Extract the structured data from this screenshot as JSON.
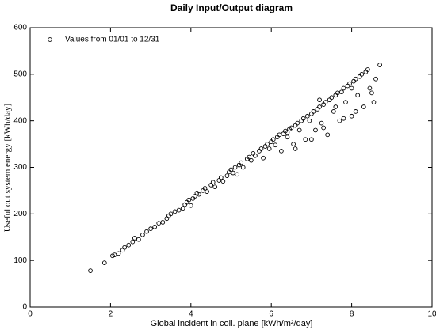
{
  "chart_data": {
    "type": "scatter",
    "title": "Daily Input/Output diagram",
    "x_label": "Global incident in coll. plane [kWh/m²/day]",
    "y_label": "Useful out system energy [kWh/day]",
    "xlim": [
      0,
      10
    ],
    "xticks": [
      0,
      2,
      4,
      6,
      8,
      10
    ],
    "ylim": [
      0,
      600
    ],
    "yticks": [
      0,
      100,
      200,
      300,
      400,
      500,
      600
    ],
    "legend": "top-left",
    "x": [
      1.5,
      1.85,
      2.05,
      2.1,
      2.2,
      2.3,
      2.35,
      2.45,
      2.55,
      2.6,
      2.7,
      2.8,
      2.9,
      3.0,
      3.1,
      3.2,
      3.3,
      3.4,
      3.45,
      3.5,
      3.6,
      3.7,
      3.8,
      3.85,
      3.9,
      3.95,
      4.0,
      4.05,
      4.1,
      4.15,
      4.2,
      4.3,
      4.35,
      4.4,
      4.5,
      4.55,
      4.6,
      4.7,
      4.75,
      4.8,
      4.9,
      4.95,
      5.0,
      5.05,
      5.1,
      5.15,
      5.2,
      5.25,
      5.3,
      5.4,
      5.45,
      5.5,
      5.55,
      5.6,
      5.7,
      5.75,
      5.8,
      5.85,
      5.9,
      5.95,
      6.0,
      6.05,
      6.1,
      6.15,
      6.2,
      6.25,
      6.3,
      6.35,
      6.4,
      6.45,
      6.5,
      6.55,
      6.6,
      6.65,
      6.7,
      6.75,
      6.8,
      6.85,
      6.9,
      6.95,
      7.0,
      7.05,
      7.1,
      7.15,
      7.2,
      7.25,
      7.3,
      7.35,
      7.4,
      7.45,
      7.5,
      7.55,
      7.6,
      7.65,
      7.7,
      7.75,
      7.8,
      7.85,
      7.9,
      7.95,
      8.0,
      8.05,
      8.1,
      8.15,
      8.2,
      8.25,
      8.3,
      8.35,
      8.4,
      8.45,
      8.5,
      8.6,
      8.7,
      8.55,
      6.6,
      7.0,
      7.3,
      8.1,
      6.4,
      7.8,
      7.2,
      7.6,
      8.0
    ],
    "series": [
      {
        "name": "Values from 01/01 to 12/31",
        "color": "#000000",
        "values": [
          78,
          95,
          110,
          112,
          115,
          122,
          128,
          133,
          140,
          148,
          145,
          155,
          162,
          168,
          172,
          180,
          182,
          190,
          196,
          200,
          205,
          208,
          212,
          220,
          225,
          230,
          218,
          233,
          238,
          245,
          242,
          250,
          255,
          248,
          262,
          268,
          258,
          272,
          278,
          270,
          282,
          290,
          295,
          288,
          300,
          285,
          305,
          310,
          300,
          318,
          322,
          315,
          330,
          325,
          335,
          340,
          320,
          345,
          350,
          340,
          355,
          360,
          348,
          365,
          370,
          335,
          372,
          378,
          365,
          382,
          385,
          350,
          390,
          395,
          380,
          400,
          405,
          360,
          410,
          400,
          415,
          420,
          380,
          425,
          430,
          395,
          435,
          440,
          370,
          445,
          450,
          420,
          455,
          460,
          400,
          462,
          470,
          440,
          475,
          480,
          410,
          485,
          490,
          455,
          495,
          500,
          430,
          505,
          510,
          470,
          460,
          490,
          520,
          440,
          340,
          360,
          385,
          420,
          375,
          405,
          445,
          430,
          470
        ]
      }
    ]
  }
}
